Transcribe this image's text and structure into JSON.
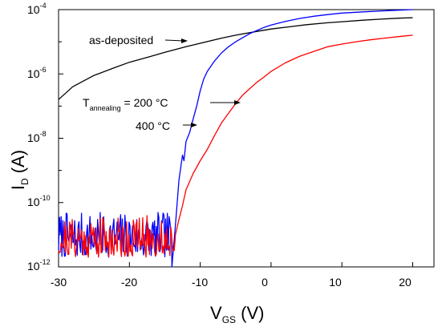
{
  "chart_data": {
    "type": "line",
    "y_scale": "log",
    "xlim": [
      -30,
      23
    ],
    "ylim_exp": [
      -12,
      -4
    ],
    "x_ticks": [
      "-30",
      "-20",
      "-10",
      "0",
      "10",
      "20"
    ],
    "y_ticks": [
      {
        "base": "10",
        "exp": "-4"
      },
      {
        "base": "10",
        "exp": "-6"
      },
      {
        "base": "10",
        "exp": "-8"
      },
      {
        "base": "10",
        "exp": "-10"
      },
      {
        "base": "10",
        "exp": "-12"
      }
    ],
    "xlabel": {
      "main": "V",
      "sub": "GS",
      "unit": " (V)"
    },
    "ylabel": {
      "main": "I",
      "sub": "D",
      "unit": " (A)"
    },
    "annotations": {
      "as_deposited": "as-deposited",
      "t_main": "T",
      "t_sub": "annealing",
      "t_value": " = 200 °C",
      "t400": "400 °C"
    },
    "series": [
      {
        "id": "as-deposited",
        "color": "#000000",
        "x": [
          -30,
          -28,
          -25,
          -22,
          -20,
          -17,
          -15,
          -12,
          -10,
          -7,
          -5,
          -2,
          0,
          3,
          5,
          8,
          10,
          13,
          15,
          18,
          20
        ],
        "y": [
          1.6e-07,
          4e-07,
          9e-07,
          1.6e-06,
          2.3e-06,
          3.5e-06,
          4.7e-06,
          7e-06,
          9e-06,
          1.3e-05,
          1.6e-05,
          2.1e-05,
          2.5e-05,
          3e-05,
          3.4e-05,
          3.9e-05,
          4.2e-05,
          4.7e-05,
          5e-05,
          5.4e-05,
          5.6e-05
        ]
      },
      {
        "id": "200C",
        "color": "#0000ff",
        "noise": {
          "x_from": -30,
          "x_to": -14,
          "y_low": 2e-12,
          "y_high": 5e-11,
          "seed": 7
        },
        "x": [
          -14,
          -13.5,
          -13,
          -12.5,
          -12.3,
          -12,
          -11.5,
          -11,
          -10.5,
          -10,
          -9.5,
          -9,
          -8,
          -7,
          -6,
          -5,
          -3,
          -1,
          0,
          2,
          4,
          6,
          8,
          10,
          13,
          16,
          18,
          20
        ],
        "y": [
          1e-12,
          2e-11,
          5e-10,
          3e-09,
          2e-09,
          8e-09,
          1.5e-08,
          4e-08,
          1e-07,
          3e-07,
          7e-07,
          1.2e-06,
          2.5e-06,
          4.5e-06,
          7e-06,
          1e-05,
          1.8e-05,
          2.8e-05,
          3.3e-05,
          4.3e-05,
          5.3e-05,
          6.2e-05,
          7e-05,
          7.8e-05,
          8.5e-05,
          9.2e-05,
          9.6e-05,
          0.0001
        ]
      },
      {
        "id": "400C",
        "color": "#ff0000",
        "noise": {
          "x_from": -30,
          "x_to": -13.5,
          "y_low": 2e-12,
          "y_high": 4e-11,
          "seed": 21
        },
        "x": [
          -13.5,
          -13,
          -12.5,
          -12,
          -11,
          -10,
          -9.5,
          -9,
          -8,
          -7,
          -6,
          -5,
          -4,
          -3,
          -2,
          -1,
          0,
          2,
          4,
          6,
          8,
          10,
          12,
          14,
          16,
          18,
          20
        ],
        "y": [
          1e-11,
          3e-11,
          8e-11,
          2.5e-10,
          8e-10,
          2e-09,
          3e-09,
          4.5e-09,
          1.2e-08,
          3e-08,
          6e-08,
          1.2e-07,
          2.2e-07,
          3.5e-07,
          5.5e-07,
          8e-07,
          1.2e-06,
          2.2e-06,
          3.5e-06,
          5e-06,
          7e-06,
          8.5e-06,
          1e-05,
          1.15e-05,
          1.3e-05,
          1.45e-05,
          1.6e-05
        ]
      }
    ]
  }
}
